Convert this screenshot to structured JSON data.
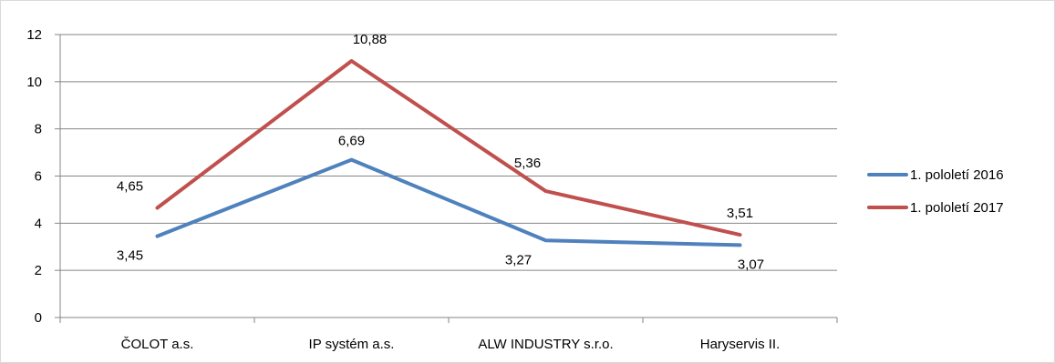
{
  "chart_data": {
    "type": "line",
    "categories": [
      "ČOLOT a.s.",
      "IP systém a.s.",
      "ALW INDUSTRY s.r.o.",
      "Haryservis II."
    ],
    "series": [
      {
        "name": "1. pololetí 2016",
        "color": "#4f81bd",
        "values": [
          3.45,
          6.69,
          3.27,
          3.07
        ],
        "labels": [
          "3,45",
          "6,69",
          "3,27",
          "3,07"
        ]
      },
      {
        "name": "1. pololetí 2017",
        "color": "#c0504d",
        "values": [
          4.65,
          10.88,
          5.36,
          3.51
        ],
        "labels": [
          "4,65",
          "10,88",
          "5,36",
          "3,51"
        ]
      }
    ],
    "ylim": [
      0,
      12
    ],
    "yticks": [
      0,
      2,
      4,
      6,
      8,
      10,
      12
    ],
    "grid": true,
    "legend": "right"
  }
}
